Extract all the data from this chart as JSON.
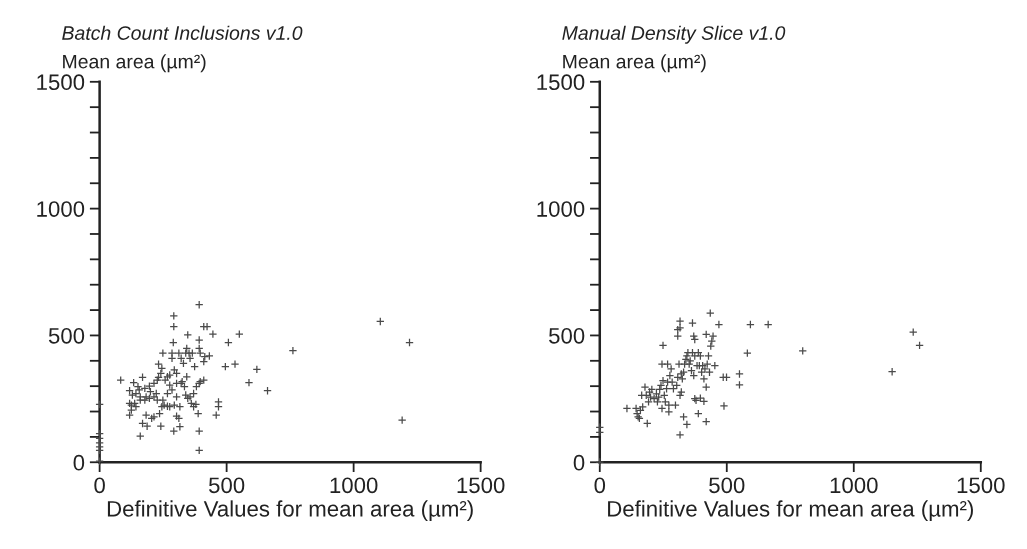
{
  "chart_data": [
    {
      "type": "scatter",
      "title": "Batch Count Inclusions v1.0",
      "ylabel": "Mean area (µm²)",
      "xlabel": "Definitive Values for mean area (µm²)",
      "marker": "cross",
      "xlim": [
        0,
        1500
      ],
      "ylim": [
        0,
        1500
      ],
      "xticks": [
        0,
        500,
        1000,
        1500
      ],
      "yticks": [
        0,
        {
          "value": 100,
          "label": null
        },
        {
          "value": 200,
          "label": null
        },
        {
          "value": 300,
          "label": null
        },
        {
          "value": 400,
          "label": null
        },
        500,
        {
          "value": 600,
          "label": null
        },
        {
          "value": 700,
          "label": null
        },
        {
          "value": 800,
          "label": null
        },
        {
          "value": 900,
          "label": null
        },
        1000,
        {
          "value": 1100,
          "label": null
        },
        {
          "value": 1200,
          "label": null
        },
        {
          "value": 1300,
          "label": null
        },
        {
          "value": 1400,
          "label": null
        },
        1500
      ],
      "series": [
        {
          "color": "#4a4a4a",
          "x": [
            0,
            0,
            0,
            0,
            0,
            0,
            0,
            83,
            134,
            169,
            118,
            129,
            143,
            156,
            178,
            196,
            214,
            227,
            232,
            241,
            232,
            245,
            249,
            258,
            267,
            276,
            285,
            285,
            290,
            292,
            292,
            294,
            303,
            312,
            321,
            325,
            330,
            339,
            343,
            347,
            352,
            356,
            365,
            374,
            392,
            392,
            392,
            396,
            410,
            414,
            423,
            432,
            446,
            410,
            118,
            125,
            118,
            143,
            160,
            178,
            196,
            214,
            227,
            245,
            254,
            267,
            276,
            294,
            303,
            316,
            339,
            347,
            356,
            370,
            361,
            370,
            379,
            388,
            392,
            396,
            410,
            381,
            343,
            334,
            321,
            303,
            285,
            276,
            267,
            249,
            223,
            200,
            183,
            160,
            151,
            138,
            125,
            183,
            169,
            187,
            205,
            214,
            236,
            241,
            303,
            312,
            316,
            292,
            160,
            392,
            392,
            459,
            468,
            468,
            495,
            507,
            533,
            550,
            588,
            619,
            661,
            761,
            1105,
            1191,
            1220
          ],
          "values": [
            228,
            113,
            94,
            76,
            61,
            47,
            4,
            324,
            314,
            335,
            282,
            265,
            271,
            285,
            291,
            300,
            311,
            324,
            335,
            350,
            387,
            370,
            430,
            324,
            337,
            344,
            430,
            410,
            472,
            535,
            577,
            364,
            350,
            430,
            410,
            318,
            390,
            430,
            449,
            502,
            430,
            410,
            430,
            377,
            621,
            482,
            449,
            430,
            535,
            416,
            535,
            419,
            505,
            397,
            232,
            206,
            186,
            219,
            245,
            245,
            252,
            258,
            245,
            219,
            225,
            221,
            219,
            225,
            258,
            219,
            265,
            252,
            258,
            271,
            232,
            219,
            228,
            192,
            311,
            318,
            324,
            298,
            337,
            298,
            311,
            311,
            285,
            304,
            271,
            245,
            271,
            278,
            258,
            258,
            298,
            232,
            225,
            186,
            153,
            142,
            173,
            179,
            192,
            142,
            182,
            173,
            140,
            123,
            103,
            123,
            47,
            186,
            238,
            219,
            377,
            472,
            387,
            505,
            314,
            366,
            282,
            440,
            555,
            166,
            472
          ]
        }
      ]
    },
    {
      "type": "scatter",
      "title": "Manual Density Slice v1.0",
      "ylabel": "Mean area (µm²)",
      "xlabel": "Definitive Values for mean area (µm²)",
      "marker": "cross",
      "xlim": [
        0,
        1500
      ],
      "ylim": [
        0,
        1500
      ],
      "xticks": [
        0,
        500,
        1000,
        1500
      ],
      "yticks": [
        0,
        {
          "value": 100,
          "label": null
        },
        {
          "value": 200,
          "label": null
        },
        {
          "value": 300,
          "label": null
        },
        {
          "value": 400,
          "label": null
        },
        500,
        {
          "value": 600,
          "label": null
        },
        {
          "value": 700,
          "label": null
        },
        {
          "value": 800,
          "label": null
        },
        {
          "value": 900,
          "label": null
        },
        1000,
        {
          "value": 1100,
          "label": null
        },
        {
          "value": 1200,
          "label": null
        },
        {
          "value": 1300,
          "label": null
        },
        {
          "value": 1400,
          "label": null
        },
        1500
      ],
      "series": [
        {
          "color": "#4a4a4a",
          "x": [
            0,
            0,
            0,
            107,
            143,
            147,
            151,
            156,
            160,
            169,
            178,
            165,
            183,
            187,
            192,
            196,
            200,
            205,
            214,
            223,
            227,
            232,
            236,
            241,
            245,
            249,
            254,
            258,
            263,
            267,
            272,
            272,
            276,
            281,
            285,
            290,
            298,
            303,
            307,
            312,
            316,
            321,
            321,
            325,
            330,
            334,
            339,
            343,
            347,
            352,
            356,
            361,
            365,
            370,
            374,
            383,
            388,
            392,
            396,
            401,
            405,
            410,
            414,
            419,
            423,
            428,
            432,
            437,
            441,
            446,
            453,
            307,
            307,
            316,
            316,
            249,
            245,
            267,
            365,
            370,
            374,
            419,
            435,
            469,
            486,
            499,
            489,
            550,
            550,
            581,
            593,
            663,
            799,
            1151,
            1234,
            1259,
            330,
            343,
            316,
            374,
            379,
            396,
            410,
            388,
            419
          ],
          "values": [
            138,
            118,
            1,
            212,
            212,
            192,
            179,
            173,
            205,
            218,
            296,
            264,
            264,
            153,
            238,
            277,
            257,
            287,
            251,
            270,
            238,
            257,
            287,
            303,
            212,
            322,
            264,
            238,
            290,
            316,
            225,
            199,
            342,
            368,
            316,
            290,
            225,
            303,
            335,
            387,
            264,
            348,
            277,
            329,
            355,
            387,
            406,
            419,
            432,
            387,
            400,
            361,
            432,
            342,
            419,
            381,
            432,
            381,
            419,
            355,
            381,
            329,
            368,
            296,
            387,
            419,
            355,
            458,
            478,
            497,
            381,
            523,
            497,
            556,
            530,
            461,
            387,
            387,
            549,
            497,
            484,
            504,
            588,
            543,
            335,
            335,
            222,
            348,
            305,
            430,
            543,
            543,
            439,
            357,
            513,
            461,
            179,
            149,
            108,
            251,
            244,
            253,
            240,
            192,
            160
          ]
        }
      ]
    }
  ]
}
